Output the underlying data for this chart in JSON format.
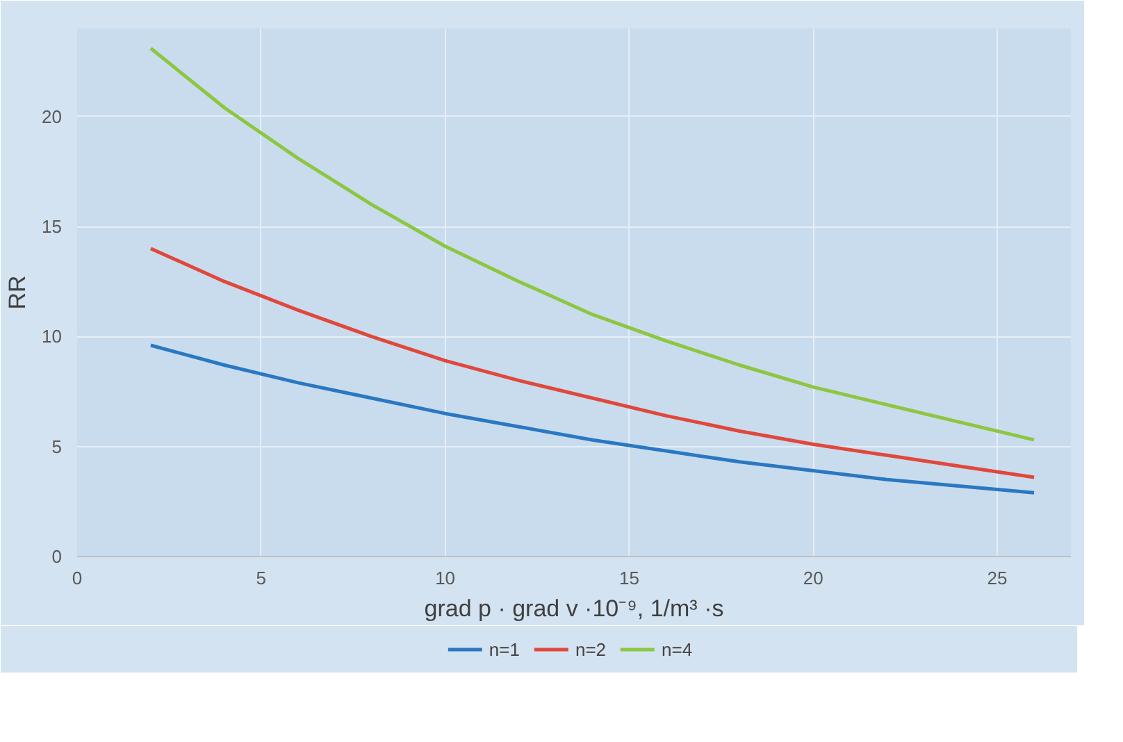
{
  "chart_data": {
    "type": "line",
    "xlabel": "grad p · grad v ·10⁻⁹, 1/m³ ·s",
    "ylabel": "RR",
    "x": [
      2,
      4,
      6,
      8,
      10,
      12,
      14,
      16,
      18,
      20,
      22,
      24,
      26
    ],
    "series": [
      {
        "name": "n=1",
        "color": "#2a78c2",
        "values": [
          9.6,
          8.7,
          7.9,
          7.2,
          6.5,
          5.9,
          5.3,
          4.8,
          4.3,
          3.9,
          3.5,
          3.2,
          2.9
        ]
      },
      {
        "name": "n=2",
        "color": "#e0483c",
        "values": [
          14.0,
          12.5,
          11.2,
          10.0,
          8.9,
          8.0,
          7.2,
          6.4,
          5.7,
          5.1,
          4.6,
          4.1,
          3.6
        ]
      },
      {
        "name": "n=4",
        "color": "#8dc641",
        "values": [
          23.1,
          20.4,
          18.1,
          16.0,
          14.1,
          12.5,
          11.0,
          9.8,
          8.7,
          7.7,
          6.9,
          6.1,
          5.3
        ]
      }
    ],
    "xlim": [
      0,
      27
    ],
    "ylim": [
      0,
      24
    ],
    "xticks": [
      0,
      5,
      10,
      15,
      20,
      25
    ],
    "yticks": [
      0,
      5,
      10,
      15,
      20
    ],
    "grid": true,
    "legend": "bottom",
    "marker": "none",
    "line_style": "solid"
  }
}
